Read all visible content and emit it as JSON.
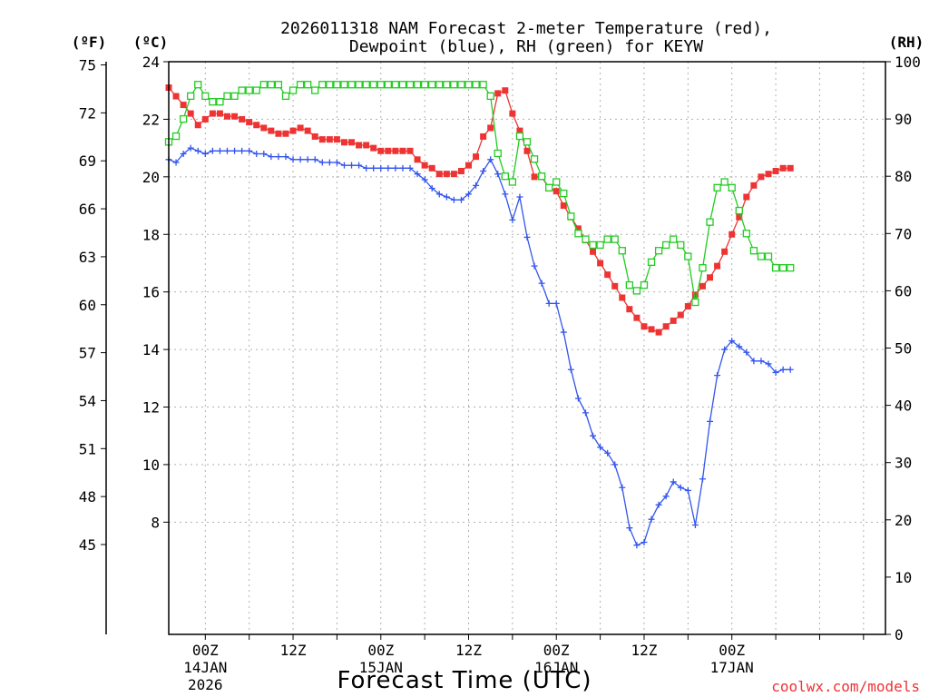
{
  "chart_data": {
    "type": "line",
    "title_lines": [
      "2026011318 NAM Forecast 2-meter Temperature (red),",
      "Dewpoint (blue), RH (green) for KEYW"
    ],
    "xlabel": "Forecast Time (UTC)",
    "watermark": "coolwx.com/models",
    "units": {
      "fahrenheit": "(ºF)",
      "celsius": "(ºC)",
      "rh": "(RH)"
    },
    "x_unit": "hours from 2026-01-13 18Z",
    "xlim": [
      1,
      99
    ],
    "celsius_ylim": [
      4.1,
      24
    ],
    "rh_ylim": [
      0,
      100
    ],
    "celsius_ticks": [
      "24",
      "22",
      "20",
      "18",
      "16",
      "14",
      "12",
      "10",
      "8"
    ],
    "fahrenheit_ticks": [
      "75",
      "72",
      "69",
      "66",
      "63",
      "60",
      "57",
      "54",
      "51",
      "48",
      "45"
    ],
    "rh_ticks": [
      "100",
      "90",
      "80",
      "70",
      "60",
      "50",
      "40",
      "30",
      "20",
      "10",
      "0"
    ],
    "x_ticks": [
      {
        "label": "00Z",
        "sub1": "14JAN",
        "sub2": "2026"
      },
      {
        "label": "12Z",
        "sub1": "",
        "sub2": ""
      },
      {
        "label": "00Z",
        "sub1": "15JAN",
        "sub2": ""
      },
      {
        "label": "12Z",
        "sub1": "",
        "sub2": ""
      },
      {
        "label": "00Z",
        "sub1": "16JAN",
        "sub2": ""
      },
      {
        "label": "12Z",
        "sub1": "",
        "sub2": ""
      },
      {
        "label": "00Z",
        "sub1": "17JAN",
        "sub2": ""
      }
    ],
    "series": [
      {
        "name": "2-meter Temperature (°C)",
        "axis": "celsius",
        "color": "#ee3333",
        "marker": "filled-square",
        "values": [
          [
            1,
            23.1
          ],
          [
            2,
            22.8
          ],
          [
            3,
            22.5
          ],
          [
            4,
            22.2
          ],
          [
            5,
            21.8
          ],
          [
            6,
            22.0
          ],
          [
            7,
            22.2
          ],
          [
            8,
            22.2
          ],
          [
            9,
            22.1
          ],
          [
            10,
            22.1
          ],
          [
            11,
            22.0
          ],
          [
            12,
            21.9
          ],
          [
            13,
            21.8
          ],
          [
            14,
            21.7
          ],
          [
            15,
            21.6
          ],
          [
            16,
            21.5
          ],
          [
            17,
            21.5
          ],
          [
            18,
            21.6
          ],
          [
            19,
            21.7
          ],
          [
            20,
            21.6
          ],
          [
            21,
            21.4
          ],
          [
            22,
            21.3
          ],
          [
            23,
            21.3
          ],
          [
            24,
            21.3
          ],
          [
            25,
            21.2
          ],
          [
            26,
            21.2
          ],
          [
            27,
            21.1
          ],
          [
            28,
            21.1
          ],
          [
            29,
            21.0
          ],
          [
            30,
            20.9
          ],
          [
            31,
            20.9
          ],
          [
            32,
            20.9
          ],
          [
            33,
            20.9
          ],
          [
            34,
            20.9
          ],
          [
            35,
            20.6
          ],
          [
            36,
            20.4
          ],
          [
            37,
            20.3
          ],
          [
            38,
            20.1
          ],
          [
            39,
            20.1
          ],
          [
            40,
            20.1
          ],
          [
            41,
            20.2
          ],
          [
            42,
            20.4
          ],
          [
            43,
            20.7
          ],
          [
            44,
            21.4
          ],
          [
            45,
            21.7
          ],
          [
            46,
            22.9
          ],
          [
            47,
            23.0
          ],
          [
            48,
            22.2
          ],
          [
            49,
            21.6
          ],
          [
            50,
            20.9
          ],
          [
            51,
            20.0
          ],
          [
            52,
            20.0
          ],
          [
            53,
            19.6
          ],
          [
            54,
            19.5
          ],
          [
            55,
            19.0
          ],
          [
            56,
            18.6
          ],
          [
            57,
            18.2
          ],
          [
            58,
            17.8
          ],
          [
            59,
            17.4
          ],
          [
            60,
            17.0
          ],
          [
            61,
            16.6
          ],
          [
            62,
            16.2
          ],
          [
            63,
            15.8
          ],
          [
            64,
            15.4
          ],
          [
            65,
            15.1
          ],
          [
            66,
            14.8
          ],
          [
            67,
            14.7
          ],
          [
            68,
            14.6
          ],
          [
            69,
            14.8
          ],
          [
            70,
            15.0
          ],
          [
            71,
            15.2
          ],
          [
            72,
            15.5
          ],
          [
            73,
            15.9
          ],
          [
            74,
            16.2
          ],
          [
            75,
            16.5
          ],
          [
            76,
            16.9
          ],
          [
            77,
            17.4
          ],
          [
            78,
            18.0
          ],
          [
            79,
            18.6
          ],
          [
            80,
            19.3
          ],
          [
            81,
            19.7
          ],
          [
            82,
            20.0
          ],
          [
            83,
            20.1
          ],
          [
            84,
            20.2
          ],
          [
            85,
            20.3
          ],
          [
            86,
            20.3
          ]
        ]
      },
      {
        "name": "Dewpoint (°C)",
        "axis": "celsius",
        "color": "#3355ee",
        "marker": "plus",
        "values": [
          [
            1,
            20.6
          ],
          [
            2,
            20.5
          ],
          [
            3,
            20.8
          ],
          [
            4,
            21.0
          ],
          [
            5,
            20.9
          ],
          [
            6,
            20.8
          ],
          [
            7,
            20.9
          ],
          [
            8,
            20.9
          ],
          [
            9,
            20.9
          ],
          [
            10,
            20.9
          ],
          [
            11,
            20.9
          ],
          [
            12,
            20.9
          ],
          [
            13,
            20.8
          ],
          [
            14,
            20.8
          ],
          [
            15,
            20.7
          ],
          [
            16,
            20.7
          ],
          [
            17,
            20.7
          ],
          [
            18,
            20.6
          ],
          [
            19,
            20.6
          ],
          [
            20,
            20.6
          ],
          [
            21,
            20.6
          ],
          [
            22,
            20.5
          ],
          [
            23,
            20.5
          ],
          [
            24,
            20.5
          ],
          [
            25,
            20.4
          ],
          [
            26,
            20.4
          ],
          [
            27,
            20.4
          ],
          [
            28,
            20.3
          ],
          [
            29,
            20.3
          ],
          [
            30,
            20.3
          ],
          [
            31,
            20.3
          ],
          [
            32,
            20.3
          ],
          [
            33,
            20.3
          ],
          [
            34,
            20.3
          ],
          [
            35,
            20.1
          ],
          [
            36,
            19.9
          ],
          [
            37,
            19.6
          ],
          [
            38,
            19.4
          ],
          [
            39,
            19.3
          ],
          [
            40,
            19.2
          ],
          [
            41,
            19.2
          ],
          [
            42,
            19.4
          ],
          [
            43,
            19.7
          ],
          [
            44,
            20.2
          ],
          [
            45,
            20.6
          ],
          [
            46,
            20.1
          ],
          [
            47,
            19.4
          ],
          [
            48,
            18.5
          ],
          [
            49,
            19.3
          ],
          [
            50,
            17.9
          ],
          [
            51,
            16.9
          ],
          [
            52,
            16.3
          ],
          [
            53,
            15.6
          ],
          [
            54,
            15.6
          ],
          [
            55,
            14.6
          ],
          [
            56,
            13.3
          ],
          [
            57,
            12.3
          ],
          [
            58,
            11.8
          ],
          [
            59,
            11.0
          ],
          [
            60,
            10.6
          ],
          [
            61,
            10.4
          ],
          [
            62,
            10.0
          ],
          [
            63,
            9.2
          ],
          [
            64,
            7.8
          ],
          [
            65,
            7.2
          ],
          [
            66,
            7.3
          ],
          [
            67,
            8.1
          ],
          [
            68,
            8.6
          ],
          [
            69,
            8.9
          ],
          [
            70,
            9.4
          ],
          [
            71,
            9.2
          ],
          [
            72,
            9.1
          ],
          [
            73,
            7.9
          ],
          [
            74,
            9.5
          ],
          [
            75,
            11.5
          ],
          [
            76,
            13.1
          ],
          [
            77,
            14.0
          ],
          [
            78,
            14.3
          ],
          [
            79,
            14.1
          ],
          [
            80,
            13.9
          ],
          [
            81,
            13.6
          ],
          [
            82,
            13.6
          ],
          [
            83,
            13.5
          ],
          [
            84,
            13.2
          ],
          [
            85,
            13.3
          ],
          [
            86,
            13.3
          ]
        ]
      },
      {
        "name": "Relative Humidity (%)",
        "axis": "rh",
        "color": "#22cc22",
        "marker": "open-square",
        "values": [
          [
            1,
            86
          ],
          [
            2,
            87
          ],
          [
            3,
            90
          ],
          [
            4,
            94
          ],
          [
            5,
            96
          ],
          [
            6,
            94
          ],
          [
            7,
            93
          ],
          [
            8,
            93
          ],
          [
            9,
            94
          ],
          [
            10,
            94
          ],
          [
            11,
            95
          ],
          [
            12,
            95
          ],
          [
            13,
            95
          ],
          [
            14,
            96
          ],
          [
            15,
            96
          ],
          [
            16,
            96
          ],
          [
            17,
            94
          ],
          [
            18,
            95
          ],
          [
            19,
            96
          ],
          [
            20,
            96
          ],
          [
            21,
            95
          ],
          [
            22,
            96
          ],
          [
            23,
            96
          ],
          [
            24,
            96
          ],
          [
            25,
            96
          ],
          [
            26,
            96
          ],
          [
            27,
            96
          ],
          [
            28,
            96
          ],
          [
            29,
            96
          ],
          [
            30,
            96
          ],
          [
            31,
            96
          ],
          [
            32,
            96
          ],
          [
            33,
            96
          ],
          [
            34,
            96
          ],
          [
            35,
            96
          ],
          [
            36,
            96
          ],
          [
            37,
            96
          ],
          [
            38,
            96
          ],
          [
            39,
            96
          ],
          [
            40,
            96
          ],
          [
            41,
            96
          ],
          [
            42,
            96
          ],
          [
            43,
            96
          ],
          [
            44,
            96
          ],
          [
            45,
            94
          ],
          [
            46,
            84
          ],
          [
            47,
            80
          ],
          [
            48,
            79
          ],
          [
            49,
            87
          ],
          [
            50,
            86
          ],
          [
            51,
            83
          ],
          [
            52,
            80
          ],
          [
            53,
            78
          ],
          [
            54,
            79
          ],
          [
            55,
            77
          ],
          [
            56,
            73
          ],
          [
            57,
            70
          ],
          [
            58,
            69
          ],
          [
            59,
            68
          ],
          [
            60,
            68
          ],
          [
            61,
            69
          ],
          [
            62,
            69
          ],
          [
            63,
            67
          ],
          [
            64,
            61
          ],
          [
            65,
            60
          ],
          [
            66,
            61
          ],
          [
            67,
            65
          ],
          [
            68,
            67
          ],
          [
            69,
            68
          ],
          [
            70,
            69
          ],
          [
            71,
            68
          ],
          [
            72,
            66
          ],
          [
            73,
            58
          ],
          [
            74,
            64
          ],
          [
            75,
            72
          ],
          [
            76,
            78
          ],
          [
            77,
            79
          ],
          [
            78,
            78
          ],
          [
            79,
            74
          ],
          [
            80,
            70
          ],
          [
            81,
            67
          ],
          [
            82,
            66
          ],
          [
            83,
            66
          ],
          [
            84,
            64
          ],
          [
            85,
            64
          ],
          [
            86,
            64
          ]
        ]
      }
    ]
  }
}
